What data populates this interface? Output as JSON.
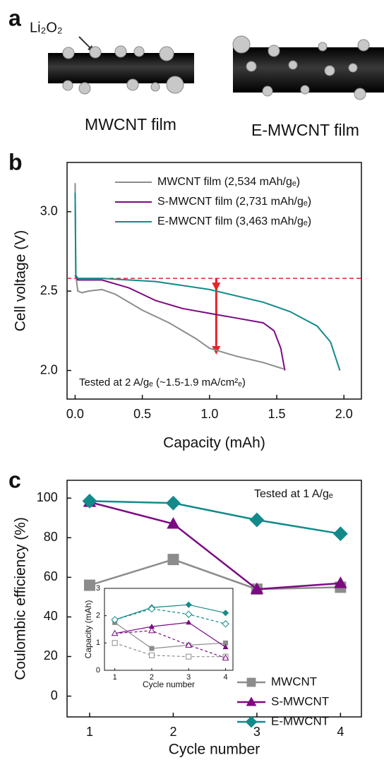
{
  "panel_a": {
    "label": "a",
    "compound": "Li₂O₂",
    "films": [
      "MWCNT film",
      "E-MWCNT film"
    ]
  },
  "chart_data": [
    {
      "type": "line",
      "panel_label": "b",
      "xlabel": "Capacity (mAh)",
      "ylabel": "Cell voltage (V)",
      "xlim": [
        -0.06,
        2.13
      ],
      "ylim": [
        1.82,
        3.31
      ],
      "xticks": [
        {
          "value": 0,
          "label": "0.0"
        },
        {
          "value": 0.5,
          "label": "0.5"
        },
        {
          "value": 1,
          "label": "1.0"
        },
        {
          "value": 1.5,
          "label": "1.5"
        },
        {
          "value": 2,
          "label": "2.0"
        }
      ],
      "yticks": [
        {
          "value": 2,
          "label": "2.0"
        },
        {
          "value": 2.5,
          "label": "2.5"
        },
        {
          "value": 3,
          "label": "3.0"
        }
      ],
      "legend": "upper right",
      "annotation": "Tested at 2 A/gₑ (~1.5-1.9 mA/cm²ₑ)",
      "reference_line": {
        "y": 2.58,
        "color": "#e8232a"
      },
      "arrows": [
        {
          "x": 1.05,
          "y_from": 2.58,
          "y_to": 2.5
        },
        {
          "x": 1.05,
          "y_from": 2.58,
          "y_to": 2.1
        }
      ],
      "series": [
        {
          "name": "MWCNT film (2,534 mAh/gₑ)",
          "color": "#8c8c8c",
          "x": [
            0,
            0.005,
            0.02,
            0.05,
            0.1,
            0.2,
            0.3,
            0.5,
            0.7,
            0.9,
            1.0,
            1.2,
            1.4,
            1.55
          ],
          "values": [
            3.18,
            2.6,
            2.5,
            2.49,
            2.5,
            2.51,
            2.48,
            2.38,
            2.3,
            2.2,
            2.14,
            2.09,
            2.05,
            2.01
          ]
        },
        {
          "name": "S-MWCNT film (2,731 mAh/gₑ)",
          "color": "#7b0a82",
          "x": [
            0,
            0.02,
            0.2,
            0.4,
            0.6,
            0.8,
            1.0,
            1.2,
            1.4,
            1.48,
            1.53,
            1.56
          ],
          "values": [
            2.6,
            2.57,
            2.57,
            2.52,
            2.44,
            2.39,
            2.36,
            2.33,
            2.3,
            2.25,
            2.14,
            2.0
          ]
        },
        {
          "name": "E-MWCNT film (3,463 mAh/gₑ)",
          "color": "#138a8a",
          "x": [
            0,
            0.005,
            0.02,
            0.2,
            0.6,
            1.0,
            1.4,
            1.6,
            1.8,
            1.9,
            1.97
          ],
          "values": [
            3.12,
            2.6,
            2.58,
            2.58,
            2.56,
            2.51,
            2.43,
            2.37,
            2.28,
            2.18,
            2.0
          ]
        }
      ]
    },
    {
      "type": "line",
      "panel_label": "c",
      "xlabel": "Cycle number",
      "ylabel": "Coulombic efficiency (%)",
      "xlim": [
        0.73,
        4.25
      ],
      "ylim": [
        -10.5,
        109
      ],
      "xticks": [
        1,
        2,
        3,
        4
      ],
      "yticks": [
        0,
        20,
        40,
        60,
        80,
        100
      ],
      "legend": "lower right",
      "annotation": "Tested at 1 A/gₑ",
      "x": [
        1,
        2,
        3,
        4
      ],
      "series": [
        {
          "name": "MWCNT",
          "color": "#8c8c8c",
          "marker": "square",
          "values": [
            56,
            69,
            54,
            55
          ]
        },
        {
          "name": "S-MWCNT",
          "color": "#7b0a82",
          "marker": "triangle",
          "values": [
            98,
            87,
            54,
            57
          ]
        },
        {
          "name": "E-MWCNT",
          "color": "#138a8a",
          "marker": "diamond",
          "values": [
            98.5,
            97.5,
            89,
            82
          ]
        }
      ]
    },
    {
      "type": "line",
      "xlabel": "Cycle number",
      "ylabel": "Capacity (mAh)",
      "xlim": [
        0.72,
        4.2
      ],
      "ylim": [
        0,
        3
      ],
      "xticks": [
        1,
        2,
        3,
        4
      ],
      "yticks": [
        0,
        1,
        2,
        3
      ],
      "x": [
        1,
        2,
        3,
        4
      ],
      "series": [
        {
          "color": "#8c8c8c",
          "marker": "square",
          "filled": true,
          "values": [
            1.75,
            0.8,
            0.92,
            1.0
          ]
        },
        {
          "color": "#8c8c8c",
          "marker": "square",
          "filled": false,
          "dashed": true,
          "values": [
            1.0,
            0.55,
            0.5,
            0.5
          ]
        },
        {
          "color": "#7b0a82",
          "marker": "triangle",
          "filled": true,
          "values": [
            1.35,
            1.6,
            1.75,
            0.85
          ]
        },
        {
          "color": "#7b0a82",
          "marker": "triangle",
          "filled": false,
          "dashed": true,
          "values": [
            1.35,
            1.45,
            0.92,
            0.45
          ]
        },
        {
          "color": "#138a8a",
          "marker": "diamond",
          "filled": true,
          "values": [
            1.85,
            2.3,
            2.4,
            2.1
          ]
        },
        {
          "color": "#138a8a",
          "marker": "diamond",
          "filled": false,
          "dashed": true,
          "values": [
            1.85,
            2.25,
            2.05,
            1.7
          ]
        }
      ]
    }
  ]
}
